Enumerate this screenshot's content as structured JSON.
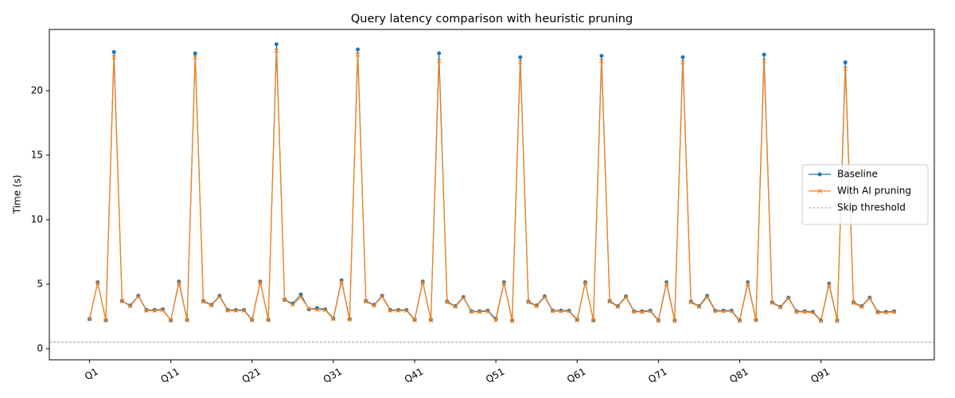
{
  "chart_data": {
    "type": "line",
    "title": "Query latency comparison with heuristic pruning",
    "ylabel": "Time (s)",
    "categories": [
      "Q1",
      null,
      null,
      null,
      null,
      null,
      null,
      null,
      null,
      null,
      "Q11",
      null,
      null,
      null,
      null,
      null,
      null,
      null,
      null,
      null,
      "Q21",
      null,
      null,
      null,
      null,
      null,
      null,
      null,
      null,
      null,
      "Q31",
      null,
      null,
      null,
      null,
      null,
      null,
      null,
      null,
      null,
      "Q41",
      null,
      null,
      null,
      null,
      null,
      null,
      null,
      null,
      null,
      "Q51",
      null,
      null,
      null,
      null,
      null,
      null,
      null,
      null,
      null,
      "Q61",
      null,
      null,
      null,
      null,
      null,
      null,
      null,
      null,
      null,
      "Q71",
      null,
      null,
      null,
      null,
      null,
      null,
      null,
      null,
      null,
      "Q81",
      null,
      null,
      null,
      null,
      null,
      null,
      null,
      null,
      null,
      "Q91",
      null,
      null,
      null,
      null,
      null,
      null,
      null,
      null,
      null
    ],
    "series": [
      {
        "name": "Baseline",
        "color": "#1f77b4",
        "marker": "o",
        "values": [
          2.3,
          5.15,
          2.2,
          23.0,
          3.7,
          3.35,
          4.1,
          3.0,
          3.0,
          3.05,
          2.2,
          5.2,
          2.25,
          22.9,
          3.7,
          3.4,
          4.1,
          3.0,
          3.0,
          3.0,
          2.25,
          5.2,
          2.25,
          23.6,
          3.8,
          3.5,
          4.2,
          3.05,
          3.15,
          3.05,
          2.35,
          5.3,
          2.3,
          23.2,
          3.7,
          3.4,
          4.1,
          3.0,
          3.0,
          3.0,
          2.25,
          5.2,
          2.25,
          22.9,
          3.65,
          3.3,
          4.0,
          2.9,
          2.9,
          2.95,
          2.3,
          5.15,
          2.2,
          22.6,
          3.65,
          3.35,
          4.05,
          2.95,
          2.95,
          2.95,
          2.25,
          5.15,
          2.2,
          22.7,
          3.7,
          3.3,
          4.05,
          2.9,
          2.9,
          2.95,
          2.2,
          5.15,
          2.2,
          22.6,
          3.65,
          3.3,
          4.1,
          2.95,
          2.95,
          2.95,
          2.2,
          5.15,
          2.25,
          22.8,
          3.6,
          3.25,
          3.95,
          2.9,
          2.9,
          2.85,
          2.2,
          5.05,
          2.2,
          22.2,
          3.6,
          3.3,
          3.95,
          2.85,
          2.85,
          2.9
        ]
      },
      {
        "name": "With AI pruning",
        "color": "#ff7f0e",
        "marker": "x",
        "values": [
          2.3,
          5.1,
          2.2,
          22.6,
          3.7,
          3.3,
          4.05,
          2.95,
          2.95,
          3.0,
          2.2,
          5.1,
          2.2,
          22.6,
          3.65,
          3.35,
          4.05,
          2.95,
          2.95,
          2.95,
          2.2,
          5.15,
          2.2,
          23.1,
          3.8,
          3.4,
          4.0,
          3.1,
          3.0,
          3.0,
          2.3,
          5.2,
          2.25,
          22.8,
          3.65,
          3.35,
          4.05,
          2.95,
          2.95,
          2.95,
          2.2,
          5.15,
          2.2,
          22.3,
          3.6,
          3.25,
          3.95,
          2.85,
          2.85,
          2.9,
          2.2,
          5.1,
          2.15,
          22.2,
          3.6,
          3.3,
          4.0,
          2.9,
          2.9,
          2.9,
          2.2,
          5.1,
          2.2,
          22.3,
          3.65,
          3.25,
          4.0,
          2.85,
          2.85,
          2.9,
          2.15,
          5.05,
          2.15,
          22.2,
          3.6,
          3.25,
          4.0,
          2.9,
          2.9,
          2.9,
          2.15,
          5.05,
          2.2,
          22.3,
          3.55,
          3.2,
          3.9,
          2.85,
          2.85,
          2.8,
          2.15,
          4.95,
          2.15,
          21.7,
          3.55,
          3.25,
          3.9,
          2.8,
          2.8,
          2.85
        ]
      }
    ],
    "threshold": {
      "name": "Skip threshold",
      "value": 0.5,
      "color": "#808080"
    },
    "ylim": [
      -0.86,
      24.75
    ],
    "yticks": [
      0,
      5,
      10,
      15,
      20
    ],
    "grid": false,
    "legend": "center right"
  }
}
